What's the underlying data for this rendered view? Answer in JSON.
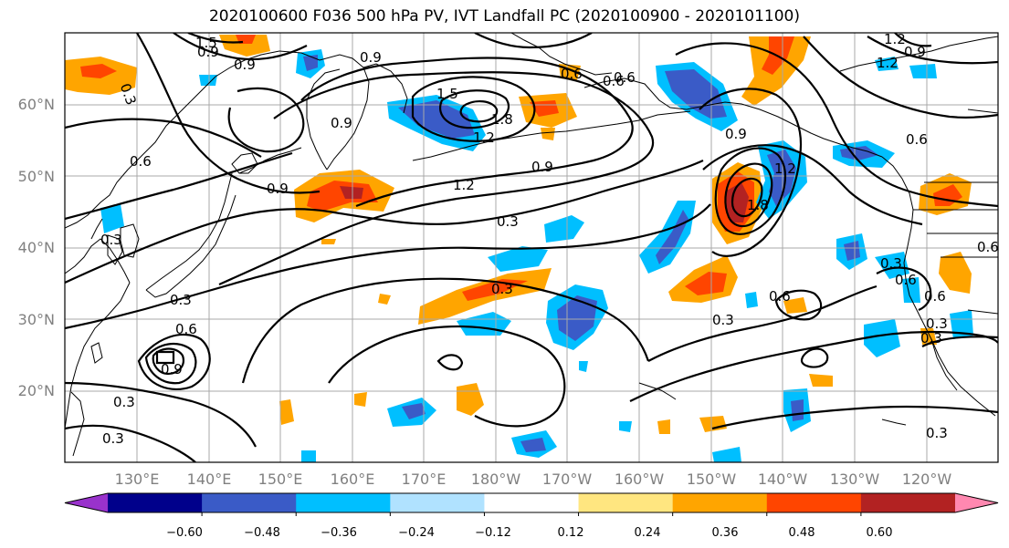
{
  "title": "2020100600 F036 500 hPa PV, IVT Landfall PC (2020100900 - 2020101100)",
  "chart_data": {
    "type": "heatmap",
    "title": "2020100600 F036 500 hPa PV, IVT Landfall PC (2020100900 - 2020101100)",
    "projection": "equirectangular",
    "lon_range": [
      120,
      -110
    ],
    "lat_range": [
      10,
      70
    ],
    "lat_ticks": [
      "20°N",
      "30°N",
      "40°N",
      "50°N",
      "60°N"
    ],
    "lon_ticks": [
      "130°E",
      "140°E",
      "150°E",
      "160°E",
      "170°E",
      "180°W",
      "170°W",
      "160°W",
      "150°W",
      "140°W",
      "130°W",
      "120°W"
    ],
    "gridlines": true,
    "colorbar": {
      "orientation": "horizontal",
      "extend": "both",
      "tick_labels": [
        "−0.60",
        "−0.48",
        "−0.36",
        "−0.24",
        "−0.12",
        "0.12",
        "0.24",
        "0.36",
        "0.48",
        "0.60"
      ],
      "colors": [
        "#9932CC",
        "#00008B",
        "#3A5BC7",
        "#00BFFF",
        "#B0E2FF",
        "#FFFFFF",
        "#FFE680",
        "#FFA500",
        "#FF4500",
        "#B22222",
        "#FF88B0"
      ]
    },
    "contour_labels": [
      "1.5",
      "0.9",
      "0.3",
      "0.9",
      "0.6",
      "1.5",
      "1.8",
      "1.2",
      "0.6",
      "0.9",
      "1.2",
      "0.9",
      "0.6",
      "1.2",
      "0.9",
      "0.3",
      "0.9",
      "0.9",
      "1.2",
      "0.6",
      "0.3",
      "0.3",
      "0.6",
      "0.3",
      "0.9",
      "0.6",
      "0.3",
      "0.3",
      "0.3",
      "0.6",
      "0.3",
      "0.3",
      "0.6",
      "0.3",
      "0.6",
      "0.3",
      "1.2",
      "0.9",
      "0.6",
      "1.8"
    ]
  }
}
